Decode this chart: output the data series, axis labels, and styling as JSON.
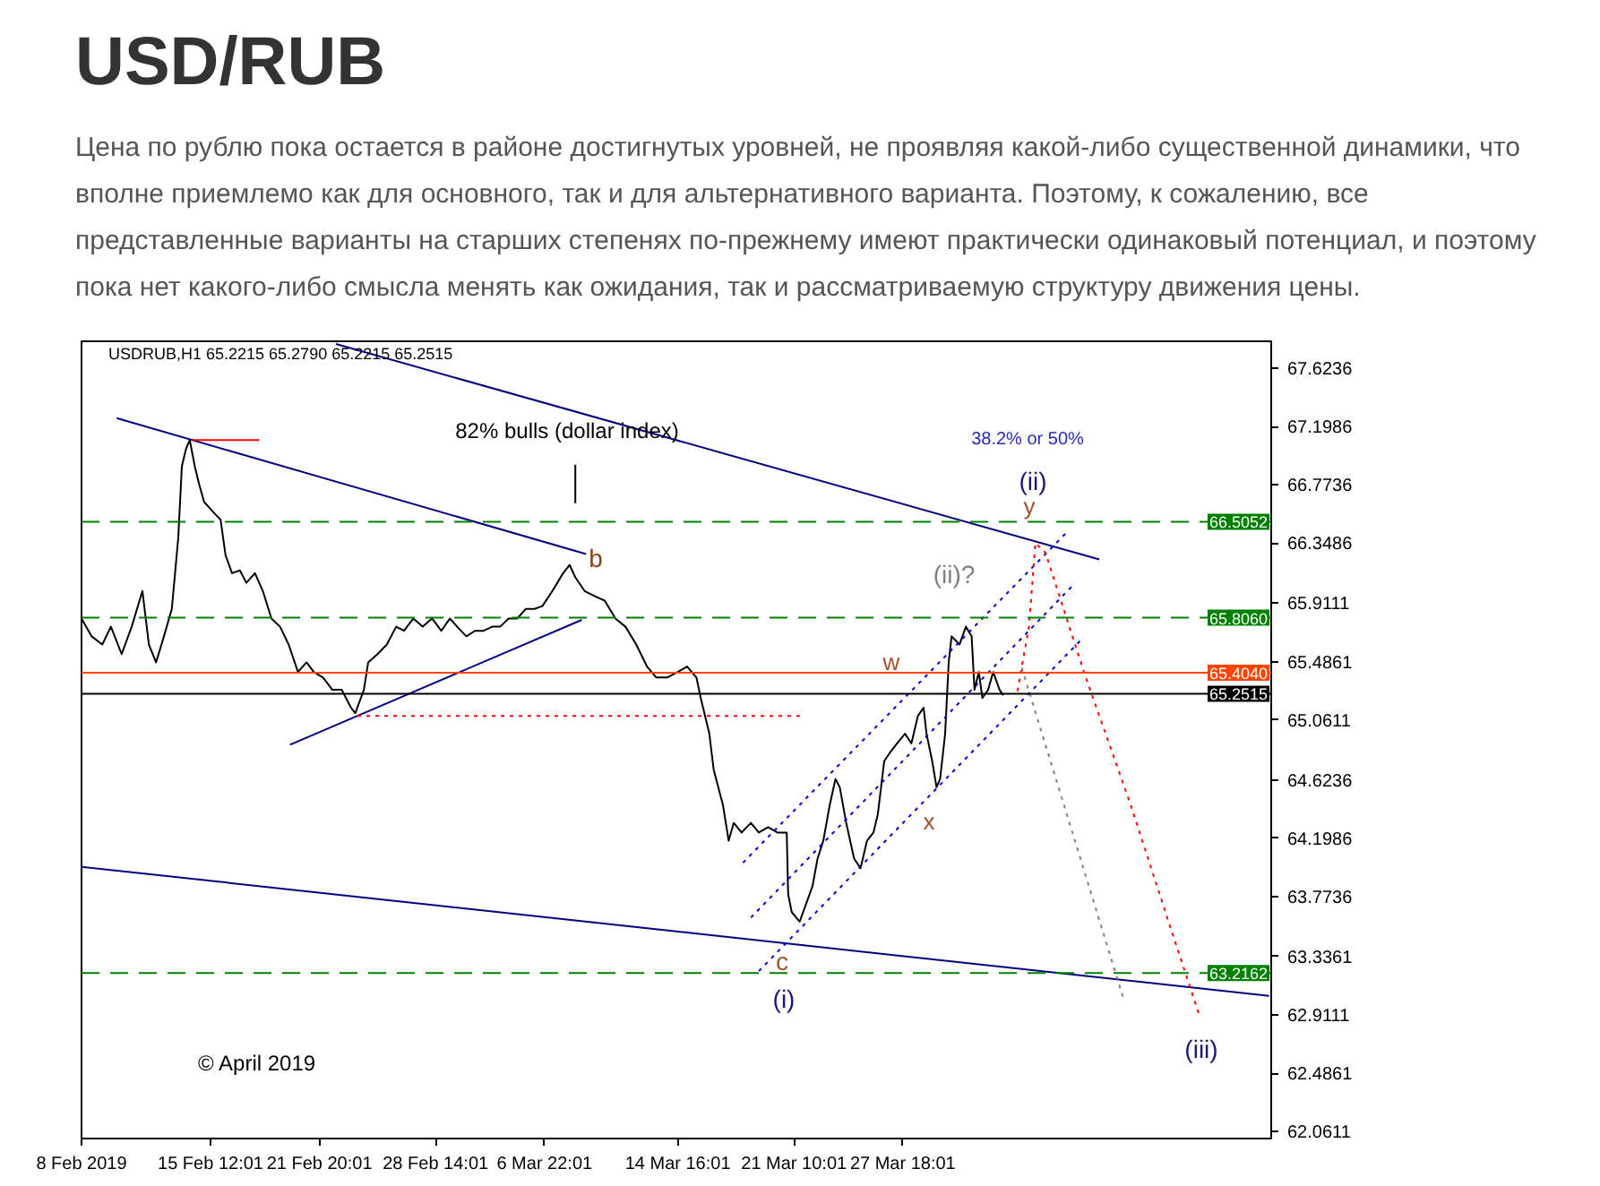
{
  "chart_data": {
    "type": "line",
    "title": "USD/RUB",
    "subtitle": "Цена по рублю пока остается в районе достигнутых уровней, не проявляя какой-либо существенной динамики, что вполне приемлемо как для основного, так и для альтернативного варианта. Поэтому, к сожалению, все представленные варианты на старших степенях по-прежнему имеют практически одинаковый потенциал, и поэтому пока нет какого-либо смысла менять как ожидания, так и рассматриваемую структуру движения цены.",
    "xlim": [
      "2019-02-08T00:00",
      "2019-04-18T04:00"
    ],
    "ylim": [
      62.01,
      67.82
    ],
    "xticks": [
      {
        "value": "2019-02-08T00:00",
        "label": "8 Feb 2019"
      },
      {
        "value": "2019-02-15T12:01",
        "label": "15 Feb 12:01"
      },
      {
        "value": "2019-02-21T20:01",
        "label": "21 Feb 20:01"
      },
      {
        "value": "2019-02-28T14:01",
        "label": "28 Feb 14:01"
      },
      {
        "value": "2019-03-06T22:01",
        "label": "6 Mar 22:01"
      },
      {
        "value": "2019-03-14T16:01",
        "label": "14 Mar 16:01"
      },
      {
        "value": "2019-03-21T10:01",
        "label": "21 Mar 10:01"
      },
      {
        "value": "2019-03-27T18:01",
        "label": "27 Mar 18:01"
      }
    ],
    "yticks": [
      67.6236,
      67.1986,
      66.7736,
      66.3486,
      65.9111,
      65.4861,
      65.0611,
      64.6236,
      64.1986,
      63.7736,
      63.3361,
      62.9111,
      62.4861,
      62.0611
    ],
    "grid": false,
    "series": [
      {
        "color": "#000000",
        "line_style": "solid",
        "x": [
          "2019-02-08T00:00",
          "2019-02-08T14:00",
          "2019-02-09T05:00",
          "2019-02-09T17:00",
          "2019-02-10T08:00",
          "2019-02-10T22:00",
          "2019-02-11T13:00",
          "2019-02-11T22:00",
          "2019-02-12T08:00",
          "2019-02-12T19:00",
          "2019-02-13T06:00",
          "2019-02-13T15:00",
          "2019-02-13T20:00",
          "2019-02-14T02:00",
          "2019-02-14T07:00",
          "2019-02-14T14:00",
          "2019-02-14T20:00",
          "2019-02-15T03:00",
          "2019-02-15T15:00",
          "2019-02-16T02:00",
          "2019-02-16T09:00",
          "2019-02-16T18:00",
          "2019-02-17T05:00",
          "2019-02-17T14:00",
          "2019-02-18T02:00",
          "2019-02-18T13:00",
          "2019-02-19T01:00",
          "2019-02-19T13:00",
          "2019-02-20T01:00",
          "2019-02-20T14:00",
          "2019-02-21T02:00",
          "2019-02-21T12:00",
          "2019-02-22T01:00",
          "2019-02-22T14:00",
          "2019-02-23T03:00",
          "2019-02-23T16:00",
          "2019-02-23T22:00",
          "2019-02-24T10:00",
          "2019-02-24T16:00",
          "2019-02-25T05:00",
          "2019-02-25T18:00",
          "2019-02-26T07:00",
          "2019-02-26T18:00",
          "2019-02-27T07:00",
          "2019-02-27T20:00",
          "2019-02-28T09:00",
          "2019-02-28T22:00",
          "2019-03-01T10:00",
          "2019-03-01T20:00",
          "2019-03-02T09:00",
          "2019-03-02T21:00",
          "2019-03-03T09:00",
          "2019-03-03T21:00",
          "2019-03-04T08:00",
          "2019-03-04T20:00",
          "2019-03-05T08:00",
          "2019-03-05T20:00",
          "2019-03-06T08:00",
          "2019-03-06T19:00",
          "2019-03-07T09:00",
          "2019-03-08T00:00",
          "2019-03-08T09:00",
          "2019-03-08T17:00",
          "2019-03-09T06:00",
          "2019-03-09T21:00",
          "2019-03-10T10:00",
          "2019-03-11T01:00",
          "2019-03-11T15:00",
          "2019-03-12T06:00",
          "2019-03-12T21:00",
          "2019-03-13T10:00",
          "2019-03-14T01:00",
          "2019-03-14T16:00",
          "2019-03-15T05:00",
          "2019-03-15T18:00",
          "2019-03-16T00:00",
          "2019-03-16T12:00",
          "2019-03-16T18:00",
          "2019-03-17T07:00",
          "2019-03-17T15:00",
          "2019-03-17T22:00",
          "2019-03-18T09:00",
          "2019-03-18T22:00",
          "2019-03-19T09:00",
          "2019-03-19T22:00",
          "2019-03-20T11:00",
          "2019-03-21T00:00",
          "2019-03-21T02:00",
          "2019-03-21T07:00",
          "2019-03-21T18:00",
          "2019-03-22T03:00",
          "2019-03-22T12:00",
          "2019-03-22T19:00",
          "2019-03-23T03:00",
          "2019-03-23T12:00",
          "2019-03-23T20:00",
          "2019-03-24T02:00",
          "2019-03-24T11:00",
          "2019-03-24T22:00",
          "2019-03-25T07:00",
          "2019-03-25T16:00",
          "2019-03-26T01:00",
          "2019-03-26T07:00",
          "2019-03-26T16:00",
          "2019-03-27T01:00",
          "2019-03-27T10:00",
          "2019-03-27T21:00",
          "2019-03-28T06:00",
          "2019-03-28T15:00",
          "2019-03-28T23:00",
          "2019-03-29T03:00",
          "2019-03-29T11:00",
          "2019-03-29T17:00",
          "2019-03-29T22:00",
          "2019-03-30T05:00",
          "2019-03-30T10:00",
          "2019-03-30T14:00",
          "2019-03-31T01:00",
          "2019-03-31T10:00",
          "2019-03-31T18:00",
          "2019-03-31T22:00",
          "2019-04-01T04:00",
          "2019-04-01T09:00",
          "2019-04-01T17:00",
          "2019-04-02T00:00",
          "2019-04-02T09:00",
          "2019-04-02T14:00"
        ],
        "values": [
          65.8,
          65.67,
          65.61,
          65.74,
          65.54,
          65.74,
          66.0,
          65.61,
          65.48,
          65.67,
          65.87,
          66.39,
          66.91,
          67.04,
          67.1,
          66.91,
          66.78,
          66.65,
          66.58,
          66.52,
          66.26,
          66.13,
          66.15,
          66.06,
          66.13,
          66.0,
          65.8,
          65.74,
          65.61,
          65.41,
          65.48,
          65.41,
          65.37,
          65.28,
          65.28,
          65.15,
          65.11,
          65.28,
          65.48,
          65.54,
          65.61,
          65.74,
          65.71,
          65.8,
          65.74,
          65.8,
          65.71,
          65.8,
          65.74,
          65.67,
          65.71,
          65.71,
          65.74,
          65.74,
          65.8,
          65.8,
          65.87,
          65.87,
          65.89,
          66.0,
          66.13,
          66.19,
          66.1,
          66.0,
          65.96,
          65.93,
          65.8,
          65.74,
          65.61,
          65.45,
          65.37,
          65.37,
          65.41,
          65.45,
          65.37,
          65.22,
          64.96,
          64.7,
          64.44,
          64.18,
          64.31,
          64.24,
          64.31,
          64.24,
          64.28,
          64.24,
          64.24,
          63.79,
          63.66,
          63.59,
          63.72,
          63.85,
          64.05,
          64.18,
          64.44,
          64.63,
          64.57,
          64.31,
          64.05,
          63.98,
          64.18,
          64.24,
          64.37,
          64.76,
          64.83,
          64.89,
          64.96,
          64.89,
          65.09,
          65.15,
          64.96,
          64.76,
          64.57,
          64.63,
          64.96,
          65.48,
          65.67,
          65.61,
          65.74,
          65.67,
          65.28,
          65.41,
          65.22,
          65.28,
          65.41,
          65.28,
          65.24
        ]
      },
      {
        "color": "#000080",
        "line_style": "solid",
        "x": [
          "2019-02-10T01:00",
          "2019-03-09T08:00"
        ],
        "values": [
          67.26,
          66.27
        ]
      },
      {
        "color": "#000080",
        "line_style": "solid",
        "x": [
          "2019-02-20T03:00",
          "2019-03-09T02:00"
        ],
        "values": [
          64.88,
          65.79
        ]
      },
      {
        "color": "#000080",
        "line_style": "solid",
        "x": [
          "2019-02-22T19:00",
          "2019-04-08T04:00"
        ],
        "values": [
          67.8,
          66.23
        ]
      },
      {
        "color": "#000080",
        "line_style": "solid",
        "x": [
          "2019-02-08T00:00",
          "2019-04-18T01:00"
        ],
        "values": [
          63.99,
          63.05
        ]
      },
      {
        "color": "#ff0000",
        "line_style": "solid",
        "x": [
          "2019-02-14T11:00",
          "2019-02-18T08:00"
        ],
        "values": [
          67.1,
          67.1
        ]
      },
      {
        "color": "#ff0000",
        "line_style": "dotted",
        "x": [
          "2019-02-24T01:00",
          "2019-03-21T19:00"
        ],
        "values": [
          65.09,
          65.09
        ]
      },
      {
        "color": "#0000cd",
        "line_style": "dotted",
        "x": [
          "2019-03-18T11:00",
          "2019-04-06T09:00"
        ],
        "values": [
          64.02,
          66.44
        ]
      },
      {
        "color": "#0000cd",
        "line_style": "dotted",
        "x": [
          "2019-03-18T22:00",
          "2019-04-06T15:00"
        ],
        "values": [
          63.62,
          66.04
        ]
      },
      {
        "color": "#0000cd",
        "line_style": "dotted",
        "x": [
          "2019-03-19T09:00",
          "2019-04-07T02:00"
        ],
        "values": [
          63.23,
          65.64
        ]
      },
      {
        "color": "#ff0000",
        "line_style": "dotted",
        "x": [
          "2019-04-03T10:00",
          "2019-04-04T02:00",
          "2019-04-04T11:00",
          "2019-04-05T01:00",
          "2019-04-07T08:00",
          "2019-04-10T00:00",
          "2019-04-12T06:00",
          "2019-04-13T23:00"
        ],
        "values": [
          65.27,
          65.74,
          66.35,
          66.28,
          65.39,
          64.44,
          63.57,
          62.92
        ]
      },
      {
        "color": "#808080",
        "line_style": "dotted",
        "x": [
          "2019-04-03T16:00",
          "2019-04-09T15:00"
        ],
        "values": [
          65.44,
          63.01
        ]
      },
      {
        "color": "#000000",
        "line_style": "solid",
        "x": [
          "2019-03-08T17:00",
          "2019-03-08T17:00"
        ],
        "values": [
          66.92,
          66.64
        ]
      }
    ],
    "ref_lines": [
      {
        "axis": "y",
        "value": 66.5052,
        "label": "66.5052",
        "color": "#008000",
        "line_style": "dashed"
      },
      {
        "axis": "y",
        "value": 65.806,
        "label": "65.8060",
        "color": "#008000",
        "line_style": "dashed"
      },
      {
        "axis": "y",
        "value": 65.404,
        "label": "65.4040",
        "color": "#ff4500",
        "line_style": "solid"
      },
      {
        "axis": "y",
        "value": 65.2515,
        "label": "65.2515",
        "color": "#000000",
        "line_style": "solid"
      },
      {
        "axis": "y",
        "value": 63.2162,
        "label": "63.2162",
        "color": "#008000",
        "line_style": "dashed"
      }
    ],
    "annotations": [
      "USDRUB,H1  65.2215 65.2790 65.2215 65.2515",
      "© April 2019",
      "82% bulls (dollar index)",
      "b",
      "38.2% or 50%",
      "(ii)",
      "y",
      "(ii)?",
      "w",
      "x",
      "c",
      "(i)",
      "(iii)"
    ]
  }
}
